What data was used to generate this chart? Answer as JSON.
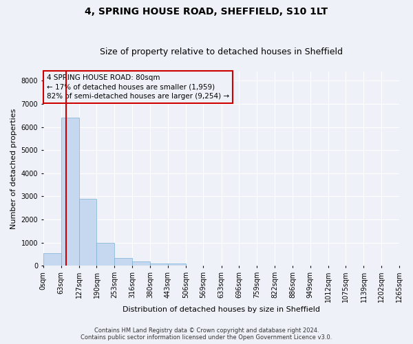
{
  "title_line1": "4, SPRING HOUSE ROAD, SHEFFIELD, S10 1LT",
  "title_line2": "Size of property relative to detached houses in Sheffield",
  "xlabel": "Distribution of detached houses by size in Sheffield",
  "ylabel": "Number of detached properties",
  "footnote1": "Contains HM Land Registry data © Crown copyright and database right 2024.",
  "footnote2": "Contains public sector information licensed under the Open Government Licence v3.0.",
  "bar_values": [
    550,
    6400,
    2900,
    1000,
    350,
    175,
    100,
    100,
    0,
    0,
    0,
    0,
    0,
    0,
    0,
    0,
    0,
    0,
    0,
    0
  ],
  "bin_edges": [
    0,
    63,
    127,
    190,
    253,
    316,
    380,
    443,
    506,
    569,
    633,
    696,
    759,
    822,
    886,
    949,
    1012,
    1075,
    1139,
    1202,
    1265
  ],
  "bar_color": "#c5d8f0",
  "bar_edge_color": "#7bafd4",
  "property_size": 80,
  "property_label": "4 SPRING HOUSE ROAD: 80sqm",
  "annotation_line1": "← 17% of detached houses are smaller (1,959)",
  "annotation_line2": "82% of semi-detached houses are larger (9,254) →",
  "vline_color": "#cc0000",
  "annotation_box_color": "#cc0000",
  "ylim_max": 8400,
  "yticks": [
    0,
    1000,
    2000,
    3000,
    4000,
    5000,
    6000,
    7000,
    8000
  ],
  "background_color": "#eef2f8",
  "grid_color": "#ffffff",
  "title_fontsize": 10,
  "subtitle_fontsize": 9,
  "axis_label_fontsize": 8,
  "tick_fontsize": 7,
  "annotation_fontsize": 7.5,
  "footnote_fontsize": 6
}
